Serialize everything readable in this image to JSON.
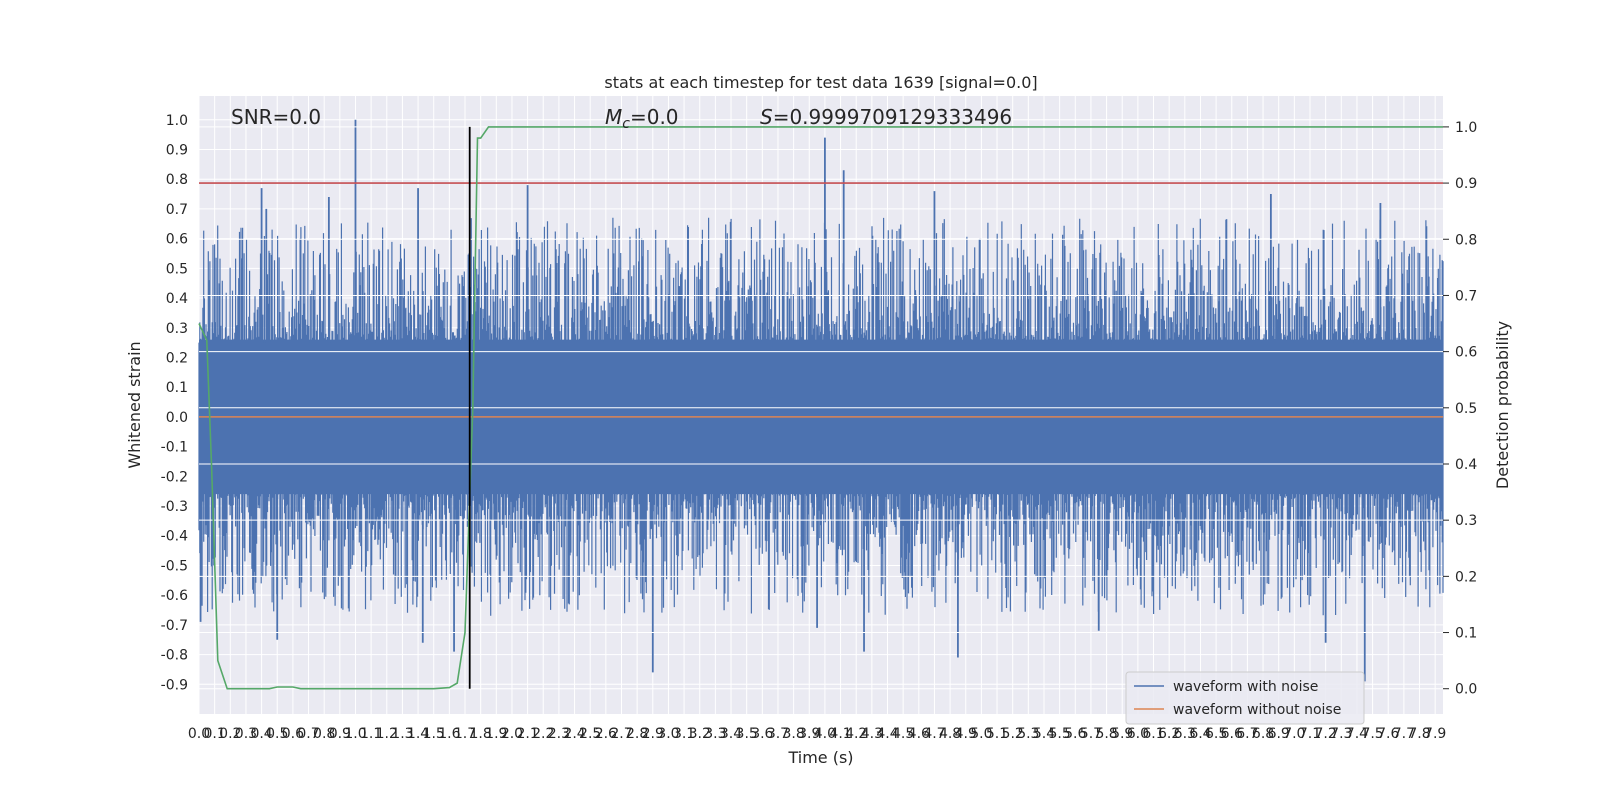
{
  "chart_data": {
    "type": "line",
    "title": "stats at each timestep for test data 1639 [signal=0.0]",
    "xlabel": "Time (s)",
    "ylabel": "Whitened strain",
    "y2label": "Detection probability",
    "xlim": [
      0.0,
      7.95
    ],
    "ylim": [
      -1.0,
      1.08
    ],
    "y2lim": [
      -0.045,
      1.055
    ],
    "x_ticks": [
      "0.0",
      "0.1",
      "0.2",
      "0.3",
      "0.4",
      "0.5",
      "0.6",
      "0.7",
      "0.8",
      "0.9",
      "1.0",
      "1.1",
      "1.2",
      "1.3",
      "1.4",
      "1.5",
      "1.6",
      "1.7",
      "1.8",
      "1.9",
      "2.0",
      "2.1",
      "2.2",
      "2.3",
      "2.4",
      "2.5",
      "2.6",
      "2.7",
      "2.8",
      "2.9",
      "3.0",
      "3.1",
      "3.2",
      "3.3",
      "3.4",
      "3.5",
      "3.6",
      "3.7",
      "3.8",
      "3.9",
      "4.0",
      "4.1",
      "4.2",
      "4.3",
      "4.4",
      "4.5",
      "4.6",
      "4.7",
      "4.8",
      "4.9",
      "5.0",
      "5.1",
      "5.2",
      "5.3",
      "5.4",
      "5.5",
      "5.6",
      "5.7",
      "5.8",
      "5.9",
      "6.0",
      "6.1",
      "6.2",
      "6.3",
      "6.4",
      "6.5",
      "6.6",
      "6.7",
      "6.8",
      "6.9",
      "7.0",
      "7.1",
      "7.2",
      "7.3",
      "7.4",
      "7.5",
      "7.6",
      "7.7",
      "7.8",
      "7.9"
    ],
    "y_ticks": [
      "1.0",
      "0.9",
      "0.8",
      "0.7",
      "0.6",
      "0.5",
      "0.4",
      "0.3",
      "0.2",
      "0.1",
      "0.0",
      "-0.1",
      "-0.2",
      "-0.3",
      "-0.4",
      "-0.5",
      "-0.6",
      "-0.7",
      "-0.8",
      "-0.9"
    ],
    "y2_ticks": [
      "1.0",
      "0.9",
      "0.8",
      "0.7",
      "0.6",
      "0.5",
      "0.4",
      "0.3",
      "0.2",
      "0.1",
      "0.0"
    ],
    "annotations": {
      "snr": "SNR=0.0",
      "mc_symbol": "M",
      "mc_sub": "c",
      "mc_value": "=0.0",
      "s_symbol": "S",
      "s_value": "=0.9999709129333496"
    },
    "series": [
      {
        "name": "waveform with noise",
        "color": "#4c72b0",
        "band_upper": 0.42,
        "band_lower": -0.42,
        "peaks": [
          {
            "x": 1.0,
            "y": 1.0
          },
          {
            "x": 4.0,
            "y": 0.94
          },
          {
            "x": 4.12,
            "y": 0.83
          },
          {
            "x": 0.4,
            "y": 0.77
          },
          {
            "x": 1.4,
            "y": 0.77
          },
          {
            "x": 2.1,
            "y": 0.78
          },
          {
            "x": 0.83,
            "y": 0.74
          },
          {
            "x": 0.43,
            "y": 0.7
          },
          {
            "x": 4.7,
            "y": 0.76
          },
          {
            "x": 6.85,
            "y": 0.75
          },
          {
            "x": 7.55,
            "y": 0.72
          },
          {
            "x": 2.9,
            "y": -0.86
          },
          {
            "x": 7.45,
            "y": -0.89
          },
          {
            "x": 4.85,
            "y": -0.81
          },
          {
            "x": 1.63,
            "y": -0.79
          },
          {
            "x": 4.25,
            "y": -0.79
          },
          {
            "x": 7.2,
            "y": -0.76
          },
          {
            "x": 1.43,
            "y": -0.76
          },
          {
            "x": 0.5,
            "y": -0.75
          },
          {
            "x": 0.01,
            "y": -0.69
          },
          {
            "x": 5.75,
            "y": -0.72
          },
          {
            "x": 3.95,
            "y": -0.71
          }
        ]
      },
      {
        "name": "waveform without noise",
        "color": "#dd8452",
        "value": 0.0
      },
      {
        "name": "detection probability",
        "axis": "right",
        "color": "#55a868",
        "x": [
          0.0,
          0.05,
          0.08,
          0.12,
          0.18,
          0.3,
          0.45,
          0.5,
          0.6,
          0.65,
          0.7,
          1.0,
          1.5,
          1.6,
          1.65,
          1.7,
          1.75,
          1.78,
          1.8,
          1.85,
          7.95
        ],
        "y": [
          0.65,
          0.62,
          0.4,
          0.05,
          0.0,
          0.0,
          0.0,
          0.003,
          0.003,
          0.0,
          0.0,
          0.0,
          0.0,
          0.002,
          0.01,
          0.1,
          0.5,
          0.98,
          0.98,
          1.0,
          1.0
        ]
      }
    ],
    "threshold": {
      "axis": "right",
      "value": 0.9,
      "color": "#c44e52"
    },
    "marker_line": {
      "x": 1.73,
      "color": "#000000"
    },
    "legend": {
      "placement": "lower-right",
      "items": [
        "waveform with noise",
        "waveform without noise"
      ]
    },
    "grid": true,
    "background_color": "#eaeaf2"
  }
}
